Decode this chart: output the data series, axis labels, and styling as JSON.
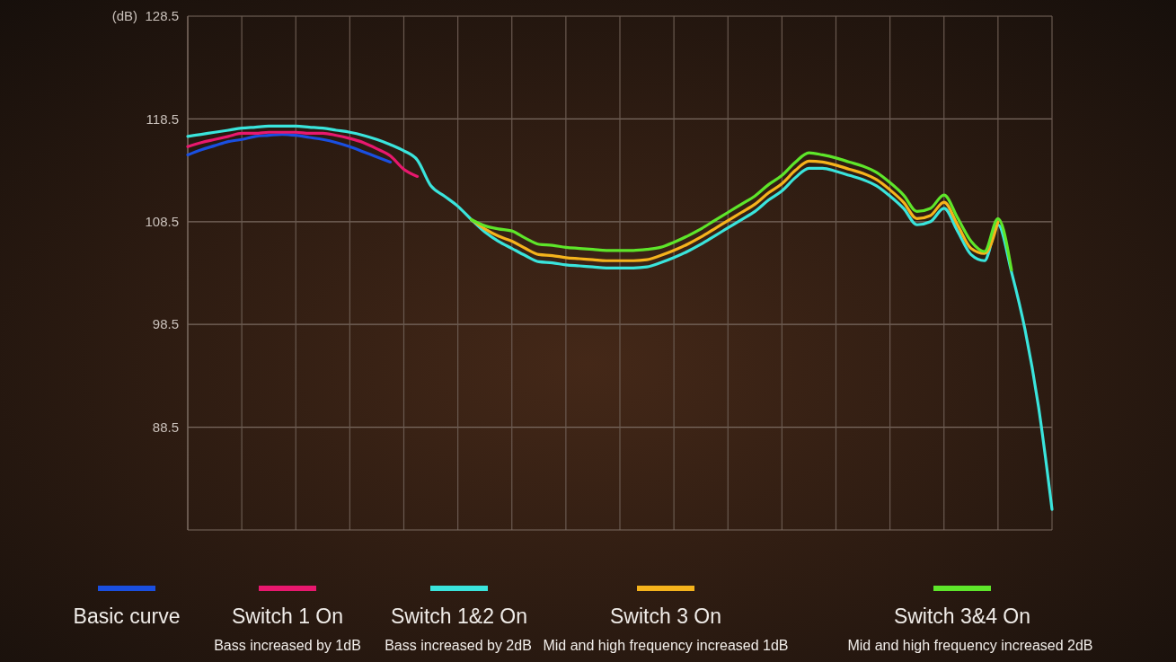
{
  "chart_data": {
    "type": "line",
    "ylabel": "(dB)",
    "categories": [
      null,
      null,
      null,
      null,
      null,
      null,
      null,
      null,
      null,
      null,
      null,
      null,
      null,
      null,
      null,
      null,
      null,
      null,
      null,
      null,
      null,
      null,
      null,
      null,
      null,
      null,
      null,
      null,
      null,
      null,
      null,
      null,
      null,
      null,
      null,
      null,
      null,
      null,
      null,
      null,
      null,
      null,
      null,
      null,
      null,
      null,
      null,
      null,
      null,
      null,
      null,
      null,
      null,
      null,
      null,
      null,
      null,
      null,
      null,
      null,
      null,
      null,
      null,
      null,
      null
    ],
    "ylim": [
      78.5,
      128.5
    ],
    "yticks": [
      88.5,
      98.5,
      108.5,
      118.5,
      128.5
    ],
    "grid": true,
    "legend": "bottom",
    "marker": "none",
    "line_style": "solid",
    "tick_labels": "y",
    "series": [
      {
        "name": "Basic curve",
        "color": "#1a4fe0",
        "values": [
          115.0,
          115.5,
          115.9,
          116.3,
          116.5,
          116.8,
          116.9,
          117.0,
          116.9,
          116.7,
          116.5,
          116.2,
          115.8,
          115.3,
          114.8,
          114.3,
          null,
          null,
          null,
          null,
          null,
          null,
          null,
          null,
          null,
          null,
          null,
          null,
          null,
          null,
          null,
          null,
          null,
          null,
          null,
          null,
          null,
          null,
          null,
          null,
          null,
          null,
          null,
          null,
          null,
          null,
          null,
          null,
          null,
          null,
          null,
          null,
          null,
          null,
          null,
          null,
          null,
          null,
          null,
          null,
          null,
          null,
          null,
          null,
          null
        ]
      },
      {
        "name": "Switch 1 On",
        "color": "#e8186e",
        "values": [
          115.8,
          116.2,
          116.5,
          116.8,
          117.1,
          117.1,
          117.2,
          117.2,
          117.2,
          117.1,
          117.1,
          116.9,
          116.6,
          116.2,
          115.6,
          114.9,
          113.6,
          112.9,
          null,
          null,
          null,
          null,
          null,
          null,
          null,
          null,
          null,
          null,
          null,
          null,
          null,
          null,
          null,
          null,
          null,
          null,
          null,
          null,
          null,
          null,
          null,
          null,
          null,
          null,
          null,
          null,
          null,
          null,
          null,
          null,
          null,
          null,
          null,
          null,
          null,
          null,
          null,
          null,
          null,
          null,
          null,
          null,
          null,
          null,
          null
        ]
      },
      {
        "name": "Switch 1&2 On",
        "color": "#3ae4dc",
        "values": [
          116.8,
          117.0,
          117.2,
          117.4,
          117.6,
          117.7,
          117.8,
          117.8,
          117.8,
          117.7,
          117.6,
          117.4,
          117.2,
          116.9,
          116.5,
          116.0,
          115.4,
          114.5,
          112.0,
          111.0,
          110.0,
          108.7,
          107.5,
          106.6,
          105.9,
          105.2,
          104.6,
          104.5,
          104.3,
          104.2,
          104.1,
          104.0,
          104.0,
          104.0,
          104.1,
          104.5,
          105.0,
          105.6,
          106.3,
          107.1,
          107.9,
          108.7,
          109.5,
          110.6,
          111.5,
          112.8,
          113.7,
          113.7,
          113.4,
          113.0,
          112.6,
          112.0,
          111.0,
          109.8,
          108.2,
          108.5,
          109.8,
          107.6,
          105.3,
          104.7,
          108.2,
          103.6,
          98.0,
          90.5,
          80.5
        ]
      },
      {
        "name": "Switch 3 On",
        "color": "#f5b31c",
        "values": [
          null,
          null,
          null,
          null,
          null,
          null,
          null,
          null,
          null,
          null,
          null,
          null,
          null,
          null,
          null,
          null,
          null,
          null,
          null,
          null,
          null,
          108.7,
          107.8,
          107.1,
          106.6,
          105.9,
          105.3,
          105.2,
          105.0,
          104.9,
          104.8,
          104.7,
          104.7,
          104.7,
          104.8,
          105.2,
          105.7,
          106.3,
          107.0,
          107.8,
          108.6,
          109.4,
          110.2,
          111.3,
          112.2,
          113.5,
          114.4,
          114.3,
          114.0,
          113.6,
          113.2,
          112.6,
          111.6,
          110.4,
          108.8,
          109.1,
          110.4,
          108.2,
          105.9,
          105.4,
          108.5,
          null,
          null,
          null,
          null
        ]
      },
      {
        "name": "Switch 3&4 On",
        "color": "#5ee62a",
        "values": [
          null,
          null,
          null,
          null,
          null,
          null,
          null,
          null,
          null,
          null,
          null,
          null,
          null,
          null,
          null,
          null,
          null,
          null,
          null,
          null,
          null,
          108.7,
          108.1,
          107.8,
          107.6,
          106.9,
          106.3,
          106.2,
          106.0,
          105.9,
          105.8,
          105.7,
          105.7,
          105.7,
          105.8,
          106.0,
          106.5,
          107.1,
          107.8,
          108.6,
          109.4,
          110.2,
          111.0,
          112.1,
          113.0,
          114.3,
          115.2,
          115.0,
          114.7,
          114.3,
          113.9,
          113.3,
          112.3,
          111.1,
          109.5,
          109.8,
          111.1,
          108.9,
          106.6,
          105.6,
          108.8,
          103.8,
          null,
          null,
          null
        ]
      }
    ],
    "annotations": [
      "Bass increased by 1dB",
      "Bass increased by 2dB",
      "Mid and high frequency increased 1dB",
      "Mid and high frequency increased 2dB"
    ]
  }
}
